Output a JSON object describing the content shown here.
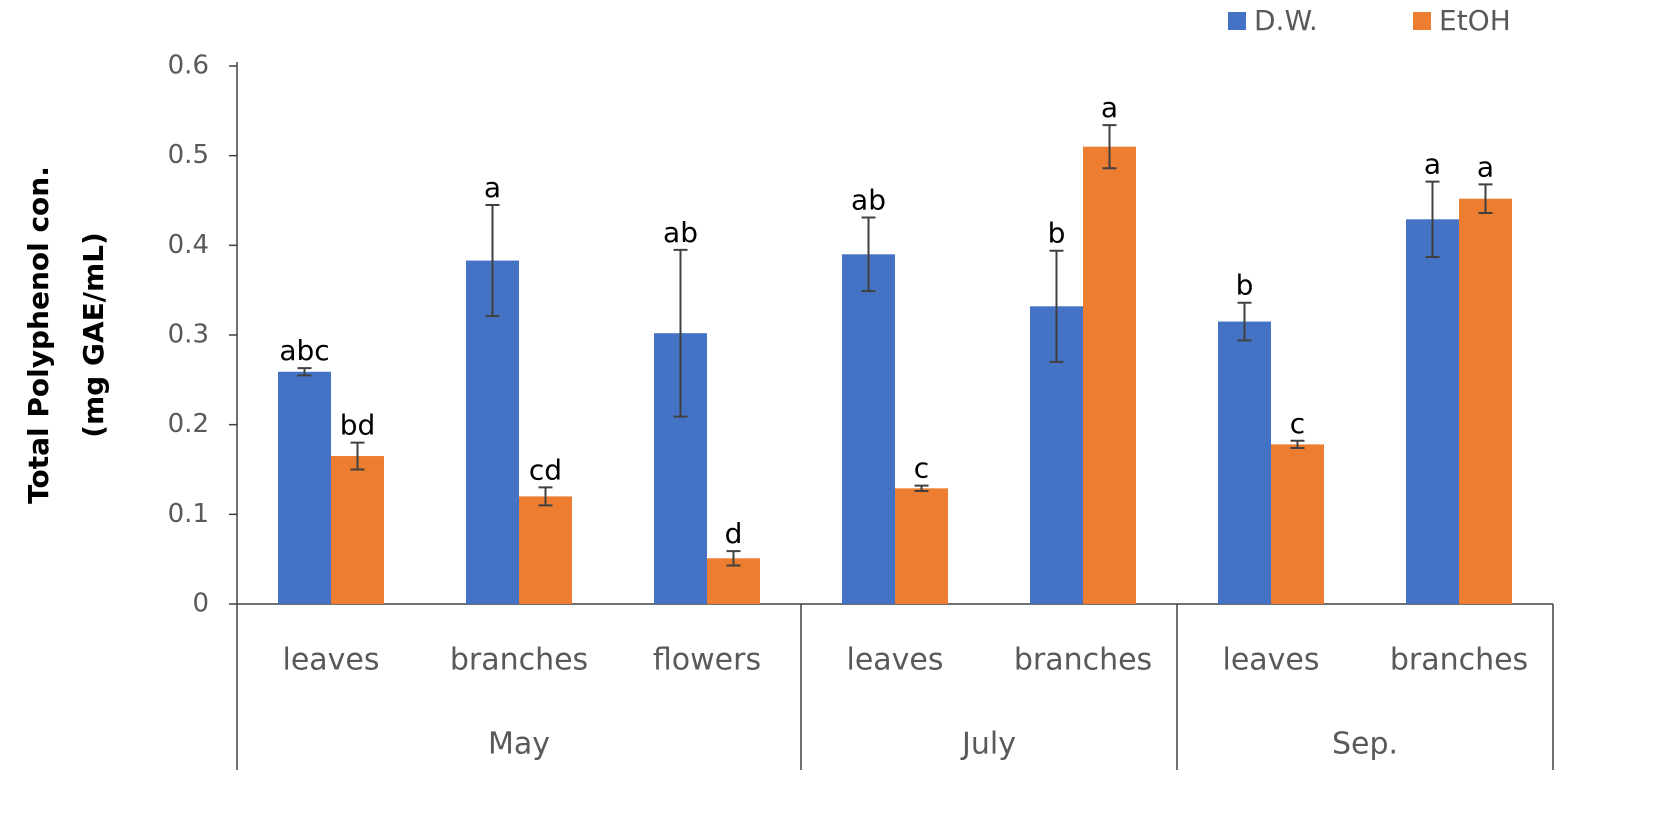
{
  "chart_data": {
    "type": "bar",
    "y_label": [
      "Total Polyphenol con.",
      "(mg GAE/mL)"
    ],
    "groups": [
      {
        "name": "May",
        "categories": [
          "leaves",
          "branches",
          "flowers"
        ]
      },
      {
        "name": "July",
        "categories": [
          "leaves",
          "branches"
        ]
      },
      {
        "name": "Sep.",
        "categories": [
          "leaves",
          "branches"
        ]
      }
    ],
    "series": [
      {
        "name": "D.W.",
        "color": "#4472c4",
        "values": [
          0.259,
          0.383,
          0.302,
          0.39,
          0.332,
          0.315,
          0.429
        ],
        "errors": [
          0.004,
          0.062,
          0.093,
          0.041,
          0.062,
          0.021,
          0.042
        ],
        "letters": [
          "abc",
          "a",
          "ab",
          "ab",
          "b",
          "b",
          "a"
        ]
      },
      {
        "name": "EtOH",
        "color": "#ed7d31",
        "values": [
          0.165,
          0.12,
          0.051,
          0.129,
          0.51,
          0.178,
          0.452
        ],
        "errors": [
          0.015,
          0.01,
          0.008,
          0.003,
          0.024,
          0.004,
          0.016
        ],
        "letters": [
          "bd",
          "cd",
          "d",
          "c",
          "a",
          "c",
          "a"
        ]
      }
    ],
    "ylim": [
      0,
      0.6
    ],
    "yticks": [
      0,
      0.1,
      0.2,
      0.3,
      0.4,
      0.5,
      0.6
    ],
    "legend": "top-right"
  }
}
